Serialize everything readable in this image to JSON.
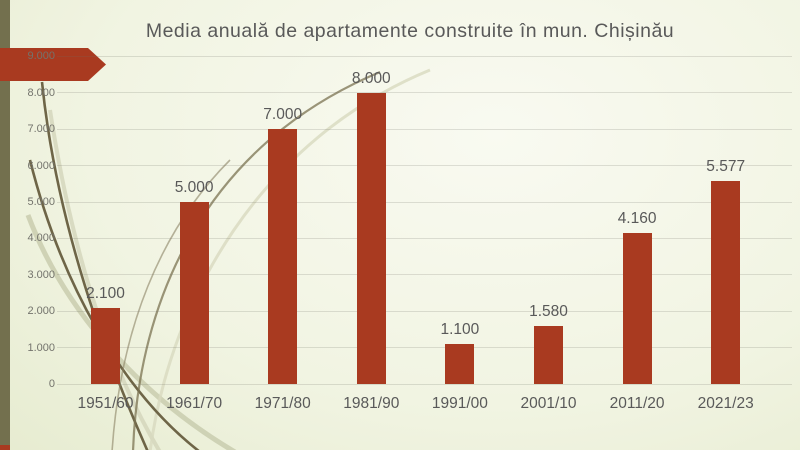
{
  "slide": {
    "title": "Media anuală de apartamente construite în mun. Chișinău",
    "title_color": "#595959",
    "accent_color": "#a93a20",
    "band_color": "#73704e",
    "background_color": "#ecf0d9"
  },
  "chart_data": {
    "type": "bar",
    "title": "Media anuală de apartamente construite în mun. Chișinău",
    "categories": [
      "1951/60",
      "1961/70",
      "1971/80",
      "1981/90",
      "1991/00",
      "2001/10",
      "2011/20",
      "2021/23"
    ],
    "values": [
      2100,
      5000,
      7000,
      8000,
      1100,
      1580,
      4160,
      5577
    ],
    "value_labels": [
      "2.100",
      "5.000",
      "7.000",
      "8.000",
      "1.100",
      "1.580",
      "4.160",
      "5.577"
    ],
    "xlabel": "",
    "ylabel": "",
    "ylim": [
      0,
      9000
    ],
    "ytick_values": [
      0,
      1000,
      2000,
      3000,
      4000,
      5000,
      6000,
      7000,
      8000,
      9000
    ],
    "ytick_labels": [
      "0",
      "1.000",
      "2.000",
      "3.000",
      "4.000",
      "5.000",
      "6.000",
      "7.000",
      "8.000",
      "9.000"
    ],
    "grid": true,
    "legend": "none",
    "bar_color": "#a93a20",
    "label_color": "#595959"
  }
}
